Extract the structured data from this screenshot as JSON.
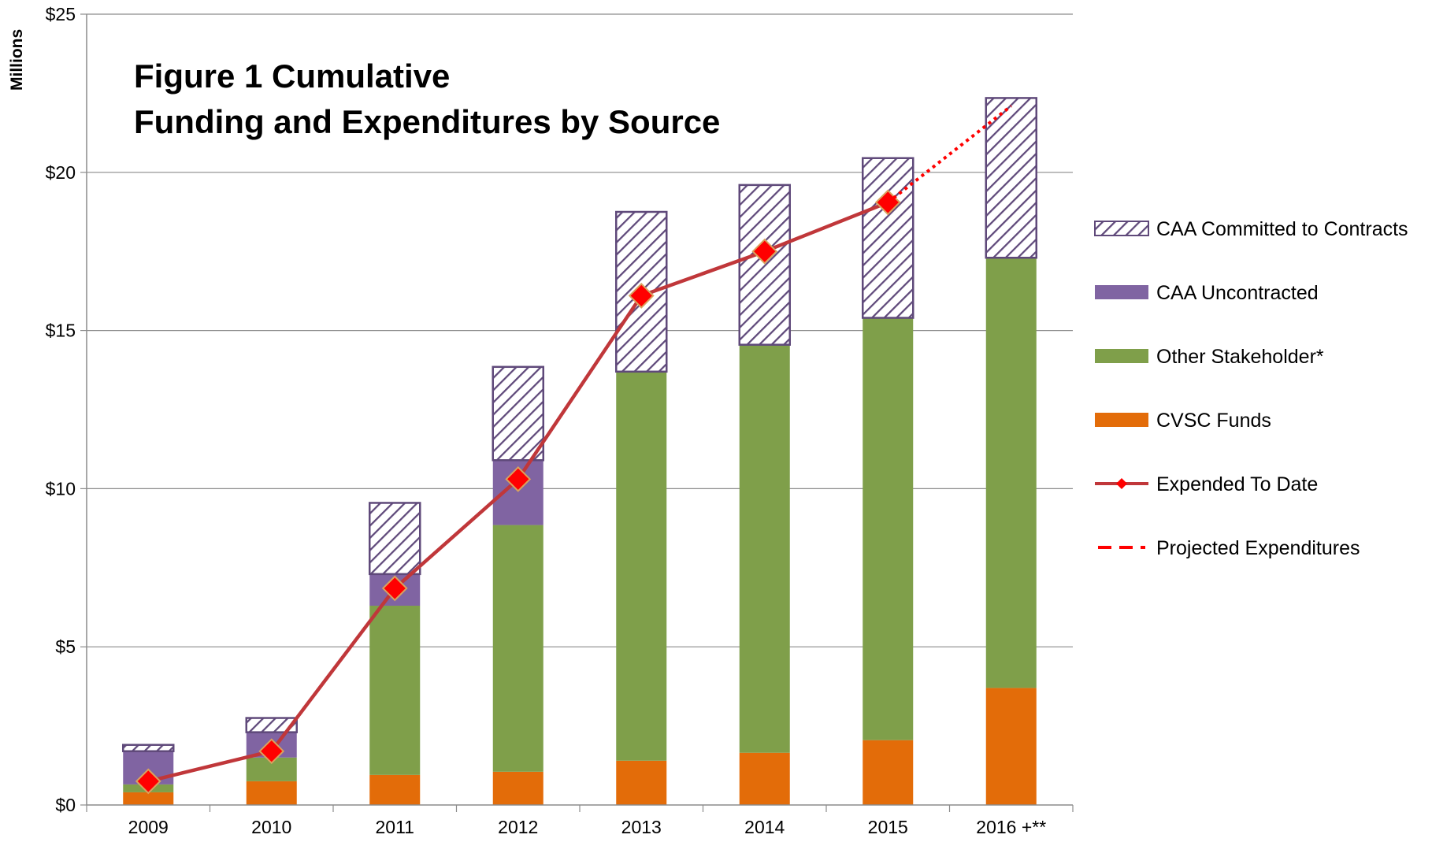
{
  "chart_data": {
    "type": "bar",
    "title_lines": [
      "Figure 1  Cumulative",
      "Funding and Expenditures by Source"
    ],
    "y_unit_label": "Millions",
    "categories": [
      "2009",
      "2010",
      "2011",
      "2012",
      "2013",
      "2014",
      "2015",
      "2016 +**"
    ],
    "y_ticks": [
      0,
      5,
      10,
      15,
      20,
      25
    ],
    "y_tick_labels": [
      "$0",
      "$5",
      "$10",
      "$15",
      "$20",
      "$25"
    ],
    "ylim": [
      0,
      25
    ],
    "grid": true,
    "stacked": true,
    "legend_position": "right",
    "series": [
      {
        "name": "CVSC Funds",
        "kind": "bar",
        "color": "#E36C09",
        "values": [
          0.4,
          0.75,
          0.95,
          1.05,
          1.4,
          1.65,
          2.05,
          3.7
        ]
      },
      {
        "name": "Other Stakeholder*",
        "kind": "bar",
        "color": "#7F9F4A",
        "values": [
          0.25,
          0.75,
          5.35,
          7.8,
          12.3,
          12.9,
          13.35,
          13.6
        ]
      },
      {
        "name": "CAA Uncontracted",
        "kind": "bar",
        "color": "#8064A2",
        "values": [
          1.05,
          0.8,
          1.0,
          2.05,
          0,
          0,
          0,
          0
        ]
      },
      {
        "name": "CAA Committed to Contracts",
        "kind": "bar-hatched",
        "color": "#5F497A",
        "values": [
          0.2,
          0.45,
          2.25,
          2.95,
          5.05,
          5.05,
          5.05,
          5.05
        ]
      },
      {
        "name": "Expended To Date",
        "kind": "line-marker",
        "color": "#C0373A",
        "marker_color": "#FF0000",
        "values": [
          0.75,
          1.7,
          6.85,
          10.3,
          16.1,
          17.5,
          19.05,
          null
        ]
      },
      {
        "name": "Projected Expenditures",
        "kind": "dotted-line",
        "color": "#FF0000",
        "values": [
          null,
          null,
          null,
          null,
          null,
          null,
          19.05,
          22.1
        ]
      }
    ],
    "legend_order": [
      "CAA Committed to Contracts",
      "CAA Uncontracted",
      "Other Stakeholder*",
      "CVSC Funds",
      "Expended To Date",
      "Projected Expenditures"
    ]
  }
}
